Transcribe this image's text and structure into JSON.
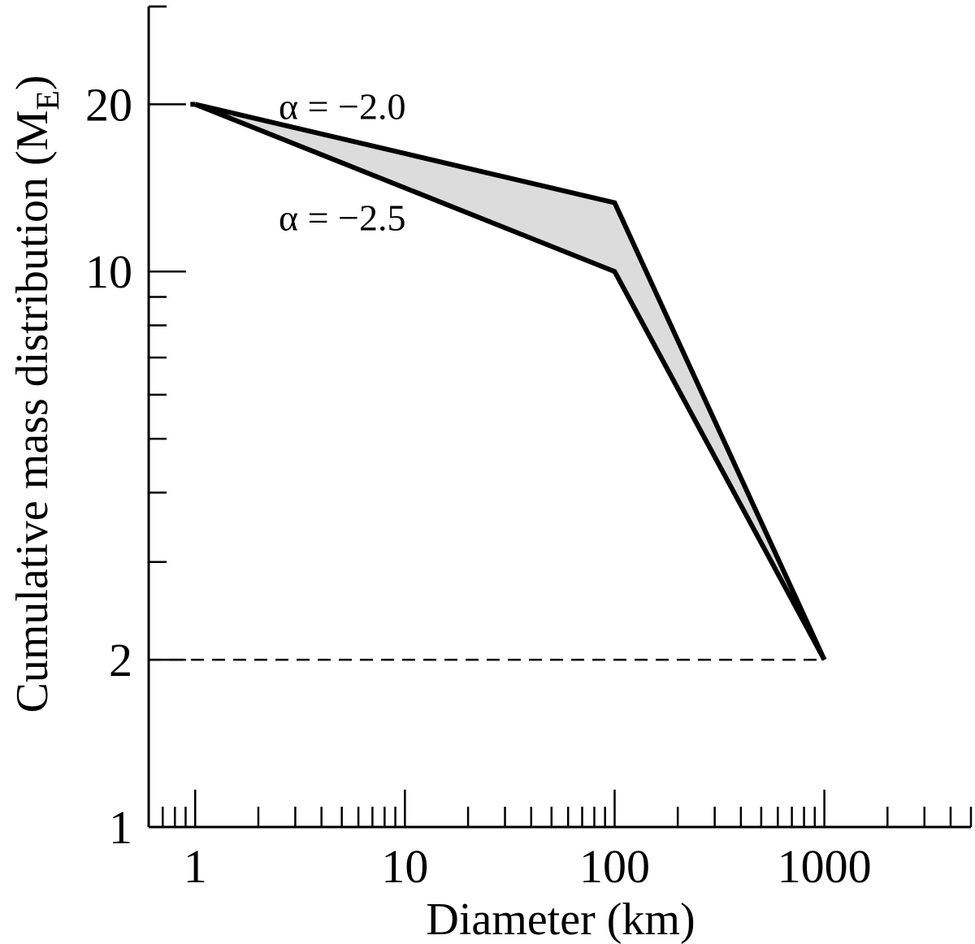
{
  "chart_data": {
    "type": "line",
    "title": "",
    "xlabel": "Diameter (km)",
    "ylabel": "Cumulative mass distribution (M",
    "ylabel_subscript": "E",
    "ylabel_close": ")",
    "xscale": "log",
    "yscale": "log",
    "xlim": [
      0.6,
      5000
    ],
    "ylim": [
      1,
      30
    ],
    "x_tick_labels": [
      {
        "value": 1,
        "label": "1"
      },
      {
        "value": 10,
        "label": "10"
      },
      {
        "value": 100,
        "label": "100"
      },
      {
        "value": 1000,
        "label": "1000"
      }
    ],
    "y_tick_labels": [
      {
        "value": 1,
        "label": "1"
      },
      {
        "value": 2,
        "label": "2"
      },
      {
        "value": 10,
        "label": "10"
      },
      {
        "value": 20,
        "label": "20"
      }
    ],
    "series": [
      {
        "x": [
          1,
          100,
          1000
        ],
        "y": [
          20,
          13.3,
          2
        ]
      },
      {
        "x": [
          1,
          100,
          1000
        ],
        "y": [
          20,
          10,
          2
        ]
      }
    ],
    "fill_between": {
      "color": "#dcdcdc"
    },
    "reference_line": {
      "y": 2,
      "x_range": [
        0.6,
        1000
      ],
      "style": "dashed"
    },
    "annotations": [
      {
        "text": "α = −2.0",
        "x": 2.5,
        "y": 20
      },
      {
        "text": "α = −2.5",
        "x": 2.5,
        "y": 12.6
      }
    ],
    "grid": false,
    "legend": "none"
  }
}
